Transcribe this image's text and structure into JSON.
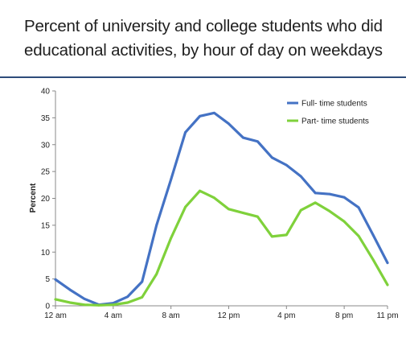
{
  "slide": {
    "title_line1": "Percent of university and college students who did",
    "title_line2": "educational activities, by hour of day on weekdays"
  },
  "chart_data": {
    "type": "line",
    "title": "Percent of university and college students who did educational activities, by hour of day on weekdays",
    "xlabel": "",
    "ylabel": "Percent",
    "ylim": [
      0,
      40
    ],
    "yticks": [
      0,
      5,
      10,
      15,
      20,
      25,
      30,
      35,
      40
    ],
    "xlim": [
      0,
      23
    ],
    "xtick_labels": [
      {
        "x": 0,
        "label": "12 am"
      },
      {
        "x": 4,
        "label": "4 am"
      },
      {
        "x": 8,
        "label": "8 am"
      },
      {
        "x": 12,
        "label": "12 pm"
      },
      {
        "x": 16,
        "label": "4 pm"
      },
      {
        "x": 20,
        "label": "8 pm"
      },
      {
        "x": 23,
        "label": "11 pm"
      }
    ],
    "x": [
      0,
      1,
      2,
      3,
      4,
      5,
      6,
      7,
      8,
      9,
      10,
      11,
      12,
      13,
      14,
      15,
      16,
      17,
      18,
      19,
      20,
      21,
      22,
      23
    ],
    "series": [
      {
        "name": "Full- time students",
        "color": "#4472c4",
        "values": [
          4.9,
          3.0,
          1.3,
          0.2,
          0.5,
          1.7,
          4.5,
          15.0,
          23.5,
          32.3,
          35.3,
          35.9,
          33.9,
          31.3,
          30.6,
          27.6,
          26.2,
          24.1,
          21.0,
          20.8,
          20.2,
          18.3,
          13.2,
          8.0
        ]
      },
      {
        "name": "Part- time students",
        "color": "#7fd13b",
        "values": [
          1.2,
          0.6,
          0.2,
          0.1,
          0.2,
          0.6,
          1.6,
          5.9,
          12.6,
          18.4,
          21.4,
          20.1,
          18.0,
          17.3,
          16.6,
          12.9,
          13.2,
          17.8,
          19.2,
          17.6,
          15.7,
          13.0,
          8.6,
          3.9
        ]
      }
    ],
    "grid": false,
    "legend": "top-right"
  }
}
